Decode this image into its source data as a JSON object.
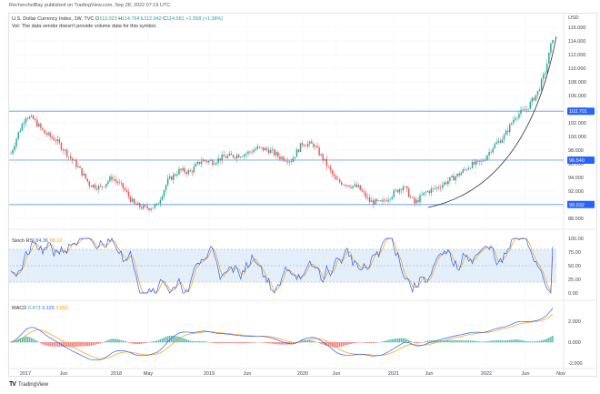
{
  "publisher_line": "RecherchelBay published on TradingView.com, Sep 28, 2022 07:19 UTC",
  "legend": {
    "symbol": "U.S. Dollar Currency Index, 1W, TVC",
    "o_label": "O",
    "o": "113.023",
    "h_label": "H",
    "h": "114.764",
    "l_label": "L",
    "l": "112.942",
    "c_label": "C",
    "c": "114.581",
    "change": "+1.558 (+1.38%)",
    "vol_note": "Vol: The data vendor doesn't provide volume data for this symbol."
  },
  "stoch": {
    "label": "Stoch RSI",
    "k": "84.36",
    "d": "68.12"
  },
  "macd": {
    "label": "MACD",
    "hist": "0.473",
    "macd": "3.125",
    "signal": "2.652"
  },
  "footer": {
    "logo": "TV",
    "brand": "TradingView"
  },
  "colors": {
    "up": "#26a69a",
    "down": "#ef5350",
    "hline": "#2962ff",
    "k": "#2962ff",
    "d": "#ff9800",
    "curve": "#333333"
  },
  "chart_data": [
    {
      "type": "candlestick",
      "title": "U.S. Dollar Currency Index, 1W, TVC",
      "ylabel": "USD",
      "ylim": [
        88,
        116
      ],
      "yticks": [
        "116.000",
        "114.000",
        "112.000",
        "110.000",
        "108.000",
        "106.000",
        "104.000",
        "102.000",
        "100.000",
        "98.000",
        "96.000",
        "94.000",
        "92.000",
        "90.000",
        "88.000"
      ],
      "xticks": [
        "2017",
        "Jun",
        "2018",
        "May",
        "2019",
        "Jun",
        "2020",
        "Jun",
        "2021",
        "Jun",
        "2022",
        "Jun",
        "Nov"
      ],
      "horizontal_levels": [
        {
          "value": "103.701"
        },
        {
          "value": "96.540"
        },
        {
          "value": "90.032"
        }
      ],
      "approx_close_path": {
        "x": [
          0,
          4,
          8,
          12,
          18,
          24,
          30,
          36,
          42,
          48,
          54,
          60,
          66,
          72,
          78,
          84,
          90,
          96,
          102,
          108,
          114,
          120,
          126,
          132,
          138,
          144,
          150,
          156,
          162,
          168,
          174,
          180,
          186,
          192,
          198,
          204,
          210,
          216,
          222,
          228,
          234,
          240,
          246,
          252,
          258,
          264,
          270,
          276,
          282,
          286,
          290
        ],
        "close": [
          97.5,
          100.5,
          103.0,
          102.5,
          100.5,
          99.5,
          97.5,
          95.5,
          93.0,
          92.5,
          94.0,
          92.5,
          90.0,
          89.5,
          89.8,
          93.5,
          95.0,
          94.8,
          96.5,
          96.3,
          97.0,
          97.2,
          97.5,
          98.3,
          98.0,
          97.0,
          96.5,
          99.0,
          98.8,
          96.3,
          93.5,
          93.0,
          92.5,
          90.5,
          90.2,
          91.5,
          92.8,
          90.2,
          91.8,
          92.5,
          93.5,
          94.5,
          95.8,
          96.2,
          98.5,
          100.0,
          103.0,
          104.0,
          106.5,
          109.5,
          114.5
        ]
      },
      "annotation": "curved support line from mid-2021 low (~89.8) to latest high"
    },
    {
      "type": "line",
      "title": "Stoch RSI",
      "series": [
        {
          "name": "K",
          "last": 84.36
        },
        {
          "name": "D",
          "last": 68.12
        }
      ],
      "yticks": [
        "100.00",
        "75.00",
        "50.00",
        "25.00",
        "0.00"
      ],
      "band": [
        20,
        80
      ]
    },
    {
      "type": "line+histogram",
      "title": "MACD",
      "series": [
        {
          "name": "Histogram",
          "last": 0.473
        },
        {
          "name": "MACD",
          "last": 3.125
        },
        {
          "name": "Signal",
          "last": 2.652
        }
      ],
      "yticks": [
        "2.000",
        "0.000",
        "-2.000"
      ]
    }
  ]
}
